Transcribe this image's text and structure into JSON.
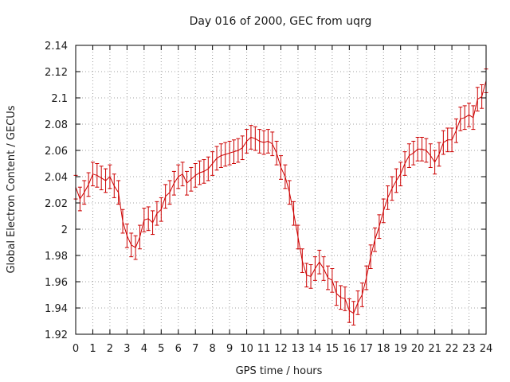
{
  "chart_data": {
    "type": "line",
    "title": "Day 016 of 2000, GEC from uqrg",
    "xlabel": "GPS time / hours",
    "ylabel": "Global Electron Content / GECUs",
    "xlim": [
      0,
      24
    ],
    "ylim": [
      1.92,
      2.14
    ],
    "xticks": [
      "0",
      "1",
      "2",
      "3",
      "4",
      "5",
      "6",
      "7",
      "8",
      "9",
      "10",
      "11",
      "12",
      "13",
      "14",
      "15",
      "16",
      "17",
      "18",
      "19",
      "20",
      "21",
      "22",
      "23",
      "24"
    ],
    "yticks": [
      "1.92",
      "1.94",
      "1.96",
      "1.98",
      "2",
      "2.02",
      "2.04",
      "2.06",
      "2.08",
      "2.1",
      "2.12",
      "2.14"
    ],
    "grid": true,
    "series_color": "#cc0000",
    "series": [
      {
        "x": [
          0,
          0.25,
          0.5,
          0.75,
          1,
          1.25,
          1.5,
          1.75,
          2,
          2.25,
          2.5,
          2.75,
          3,
          3.25,
          3.5,
          3.75,
          4,
          4.25,
          4.5,
          4.75,
          5,
          5.25,
          5.5,
          5.75,
          6,
          6.25,
          6.5,
          6.75,
          7,
          7.25,
          7.5,
          7.75,
          8,
          8.25,
          8.5,
          8.75,
          9,
          9.25,
          9.5,
          9.75,
          10,
          10.25,
          10.5,
          10.75,
          11,
          11.25,
          11.5,
          11.75,
          12,
          12.25,
          12.5,
          12.75,
          13,
          13.25,
          13.5,
          13.75,
          14,
          14.25,
          14.5,
          14.75,
          15,
          15.25,
          15.5,
          15.75,
          16,
          16.25,
          16.5,
          16.75,
          17,
          17.25,
          17.5,
          17.75,
          18,
          18.25,
          18.5,
          18.75,
          19,
          19.25,
          19.5,
          19.75,
          20,
          20.25,
          20.5,
          20.75,
          21,
          21.25,
          21.5,
          21.75,
          22,
          22.25,
          22.5,
          22.75,
          23,
          23.25,
          23.5,
          23.75,
          24
        ],
        "y": [
          2.032,
          2.023,
          2.028,
          2.034,
          2.042,
          2.041,
          2.039,
          2.037,
          2.04,
          2.033,
          2.028,
          2.006,
          1.995,
          1.988,
          1.986,
          1.994,
          2.007,
          2.008,
          2.005,
          2.012,
          2.015,
          2.025,
          2.028,
          2.035,
          2.04,
          2.042,
          2.035,
          2.038,
          2.041,
          2.043,
          2.044,
          2.046,
          2.05,
          2.054,
          2.056,
          2.057,
          2.058,
          2.059,
          2.06,
          2.062,
          2.067,
          2.07,
          2.069,
          2.067,
          2.066,
          2.067,
          2.065,
          2.058,
          2.047,
          2.04,
          2.028,
          2.012,
          1.994,
          1.976,
          1.965,
          1.964,
          1.97,
          1.975,
          1.97,
          1.963,
          1.961,
          1.951,
          1.948,
          1.947,
          1.938,
          1.936,
          1.944,
          1.95,
          1.963,
          1.979,
          1.992,
          2.002,
          2.014,
          2.024,
          2.031,
          2.037,
          2.042,
          2.05,
          2.056,
          2.058,
          2.061,
          2.061,
          2.06,
          2.056,
          2.051,
          2.057,
          2.066,
          2.068,
          2.068,
          2.075,
          2.084,
          2.085,
          2.087,
          2.085,
          2.099,
          2.101,
          2.113
        ],
        "err": 0.009
      }
    ]
  }
}
